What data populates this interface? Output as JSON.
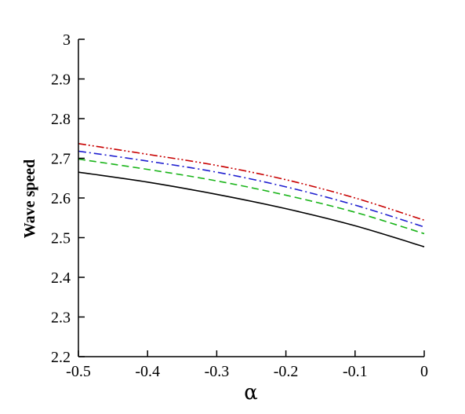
{
  "chart_data": {
    "type": "line",
    "xlabel": "α",
    "ylabel": "Wave speed",
    "xlim": [
      -0.5,
      0
    ],
    "ylim": [
      2.2,
      3.0
    ],
    "x_ticks": [
      "-0.5",
      "-0.4",
      "-0.3",
      "-0.2",
      "-0.1",
      "0"
    ],
    "y_ticks": [
      "2.2",
      "2.3",
      "2.4",
      "2.5",
      "2.6",
      "2.7",
      "2.8",
      "2.9",
      "3"
    ],
    "grid": false,
    "legend": "none",
    "x": [
      -0.5,
      -0.4,
      -0.3,
      -0.2,
      -0.1,
      0
    ],
    "series": [
      {
        "color": "#000000",
        "dash": "solid",
        "values": [
          2.665,
          2.64,
          2.609,
          2.573,
          2.53,
          2.477
        ]
      },
      {
        "color": "#19b419",
        "dash": "dashed",
        "values": [
          2.698,
          2.672,
          2.643,
          2.607,
          2.564,
          2.51
        ]
      },
      {
        "color": "#1f1fd0",
        "dash": "dash-dot",
        "values": [
          2.718,
          2.693,
          2.665,
          2.628,
          2.582,
          2.527
        ]
      },
      {
        "color": "#c80000",
        "dash": "dash-dot-dot",
        "values": [
          2.737,
          2.71,
          2.682,
          2.646,
          2.6,
          2.544
        ]
      }
    ]
  }
}
